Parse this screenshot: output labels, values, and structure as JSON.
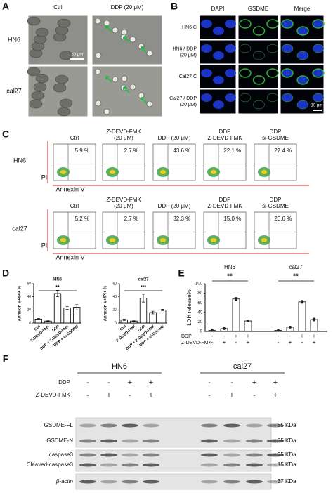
{
  "panel_a": {
    "label": "A",
    "columns": [
      "Ctrl",
      "DDP (20 μM)"
    ],
    "rows": [
      "HN6",
      "cal27"
    ],
    "scale_bar": "50 μm"
  },
  "panel_b": {
    "label": "B",
    "columns": [
      "DAPI",
      "GSDME",
      "Merge"
    ],
    "rows": [
      [
        "HN6 C"
      ],
      [
        "HN6 / DDP",
        "(20 μM)"
      ],
      [
        "Cal27 C"
      ],
      [
        "Cal27 / DDP",
        "(20 μM)"
      ]
    ],
    "scale_bar": "10 μm"
  },
  "panel_c": {
    "label": "C",
    "x_axis": "Annexin V",
    "y_axis": "PI",
    "groups": [
      {
        "name": "HN6",
        "conditions": [
          [
            "Ctrl"
          ],
          [
            "Z-DEVD-FMK",
            "(20 μM)"
          ],
          [
            "DDP (20 μM)"
          ],
          [
            "DDP",
            "Z-DEVD-FMK"
          ],
          [
            "DDP",
            "si-GSDME"
          ]
        ],
        "percentages": [
          "5.9 %",
          "2.7 %",
          "43.6 %",
          "22.1 %",
          "27.4 %"
        ]
      },
      {
        "name": "cal27",
        "conditions": [
          [
            "Ctrl"
          ],
          [
            "Z-DEVD-FMK",
            "(20 μM)"
          ],
          [
            "DDP (20 μM)"
          ],
          [
            "DDP",
            "Z-DEVD-FMK"
          ],
          [
            "DDP",
            "si-GSDME"
          ]
        ],
        "percentages": [
          "5.2 %",
          "2.7 %",
          "32.3 %",
          "15.0 %",
          "20.6 %"
        ]
      }
    ]
  },
  "panel_d": {
    "label": "D",
    "charts": [
      {
        "type": "bar",
        "title": "HN6",
        "y_label": "Annexin V+/PI+ %",
        "categories": [
          "Ctrl",
          "Z-DEVD-FMK",
          "DDP",
          "DDP + Z-DEVD-FMK",
          "DDP + si-GSDME"
        ],
        "values": [
          6,
          3,
          45,
          23,
          24
        ],
        "errors": [
          1,
          0.5,
          5,
          2,
          4
        ],
        "ylim": [
          0,
          60
        ],
        "yticks": [
          0,
          20,
          40,
          60
        ],
        "significance": "**"
      },
      {
        "type": "bar",
        "title": "cal27",
        "y_label": "Annexin V+/PI+ %",
        "categories": [
          "Ctrl",
          "Z-DEVD-FMK",
          "DDP",
          "DDP + Z-DEVD-FMK",
          "DDP + si-GSDME"
        ],
        "values": [
          5,
          3,
          38,
          16,
          20
        ],
        "errors": [
          1,
          0.5,
          6,
          2,
          1
        ],
        "ylim": [
          0,
          60
        ],
        "yticks": [
          0,
          20,
          40,
          60
        ],
        "significance": "***"
      }
    ]
  },
  "panel_e": {
    "label": "E",
    "type": "bar",
    "y_label": "LDH release%",
    "ylim": [
      0,
      100
    ],
    "yticks": [
      0,
      20,
      40,
      60,
      80,
      100
    ],
    "groups": [
      {
        "name": "HN6",
        "values": [
          2,
          6,
          68,
          22
        ],
        "errors": [
          0.5,
          1,
          3,
          2
        ],
        "significance": "**"
      },
      {
        "name": "cal27",
        "values": [
          2,
          9,
          62,
          25
        ],
        "errors": [
          0.5,
          1,
          3,
          3
        ],
        "significance": "**"
      }
    ],
    "conditions": [
      {
        "name": "DDP",
        "signs": [
          "-",
          "-",
          "+",
          "+",
          "-",
          "-",
          "+",
          "+"
        ]
      },
      {
        "name": "Z-DEVD-FMK",
        "signs": [
          "-",
          "+",
          "-",
          "+",
          "-",
          "+",
          "-",
          "+"
        ]
      }
    ]
  },
  "panel_f": {
    "label": "F",
    "groups": [
      "HN6",
      "cal27"
    ],
    "conditions": [
      {
        "name": "DDP",
        "signs": [
          "-",
          "-",
          "+",
          "+",
          "-",
          "-",
          "+",
          "+"
        ]
      },
      {
        "name": "Z-DEVD-FMK",
        "signs": [
          "-",
          "+",
          "-",
          "+",
          "-",
          "+",
          "-",
          "+"
        ]
      }
    ],
    "blots": [
      {
        "labels": [
          "GSDME-FL",
          "GSDME-N"
        ],
        "markers": [
          "- 55 KDa",
          "- 35 KDa"
        ]
      },
      {
        "labels": [
          "caspase3",
          "Cleaved-caspase3"
        ],
        "markers": [
          "- 35 KDa",
          "- 15 KDa"
        ]
      },
      {
        "labels": [
          "β-actin"
        ],
        "markers": [
          "- 37 KDa"
        ]
      }
    ]
  }
}
